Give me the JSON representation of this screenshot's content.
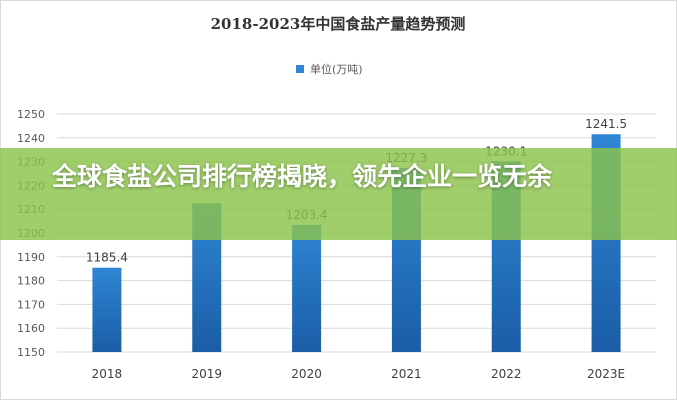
{
  "colors": {
    "bar_top": "#2e86d4",
    "bar_bottom": "#1b5da6",
    "grid": "#d9d9d9",
    "banner": "#8bc34a"
  },
  "overlay": {
    "headline": "全球食盐公司排行榜揭晓，领先企业一览无余"
  },
  "chart_data": {
    "type": "bar",
    "title": "2018-2023年中国食盐产量趋势预测",
    "legend": {
      "position": "top-center",
      "label": "单位(万吨)"
    },
    "categories": [
      "2018",
      "2019",
      "2020",
      "2021",
      "2022",
      "2023E"
    ],
    "series": [
      {
        "name": "单位(万吨)",
        "values": [
          1185.4,
          1212.5,
          1203.4,
          1227.3,
          1230.1,
          1241.5
        ]
      }
    ],
    "data_labels": [
      "1185.4",
      "",
      "1203.4",
      "1227.3",
      "1230.1",
      "1241.5"
    ],
    "ylim": [
      1150,
      1250
    ],
    "yticks": [
      1150,
      1160,
      1170,
      1180,
      1190,
      1200,
      1210,
      1220,
      1230,
      1240,
      1250
    ],
    "grid": true
  }
}
